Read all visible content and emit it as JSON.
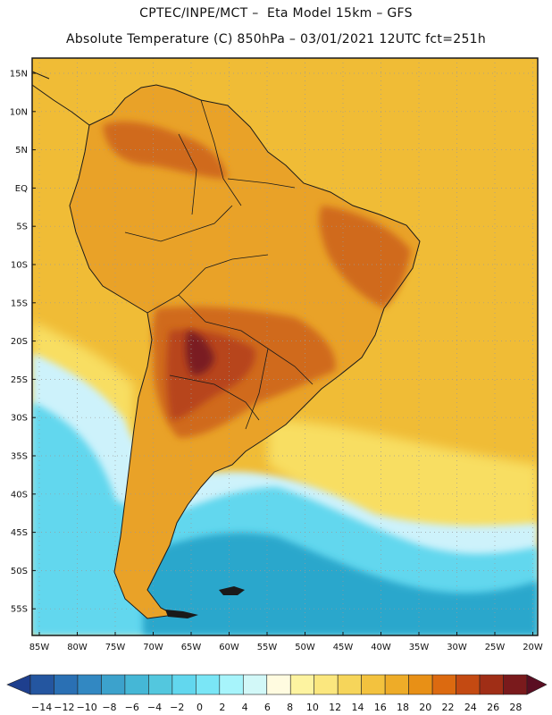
{
  "header": {
    "line1": "CPTEC/INPE/MCT –  Eta Model 15km – GFS",
    "line2": "Absolute Temperature (C) 850hPa – 03/01/2021 12UTC fct=251h"
  },
  "map": {
    "lat_labels": [
      "15N",
      "10N",
      "5N",
      "EQ",
      "5S",
      "10S",
      "15S",
      "20S",
      "25S",
      "30S",
      "35S",
      "40S",
      "45S",
      "50S",
      "55S"
    ],
    "lon_labels": [
      "85W",
      "80W",
      "75W",
      "70W",
      "65W",
      "60W",
      "55W",
      "50W",
      "45W",
      "40W",
      "35W",
      "30W",
      "25W",
      "20W"
    ],
    "colors": {
      "ocean_warm": "#f0bc36",
      "ocean_mid": "#f8de62",
      "land_base": "#e9a228",
      "hot": "#d06a1a",
      "very_hot": "#b7441a",
      "hottest": "#7a1c24",
      "cold_light": "#cdf2fb",
      "cold_mid": "#62d7ee",
      "cold_deep": "#2aa7cc",
      "coast": "#1a1a1a",
      "grid": "#9a9a9a"
    }
  },
  "colorbar": {
    "labels": [
      "-14",
      "-12",
      "-10",
      "-8",
      "-6",
      "-4",
      "-2",
      "0",
      "2",
      "4",
      "6",
      "8",
      "10",
      "12",
      "14",
      "16",
      "18",
      "20",
      "22",
      "24",
      "26",
      "28"
    ],
    "colors": [
      "#1e3f8e",
      "#2456a0",
      "#2a70b4",
      "#3288c2",
      "#3ca2cc",
      "#45b7d6",
      "#53c7de",
      "#62d7ee",
      "#7ae6f6",
      "#a7f4fb",
      "#d2f8f8",
      "#fffbe0",
      "#fdf3a0",
      "#fbe77e",
      "#f6d55a",
      "#f3c23e",
      "#eeac28",
      "#e89016",
      "#dc6a10",
      "#c44a12",
      "#a02e16",
      "#7a1a1c",
      "#5a0e22"
    ]
  }
}
